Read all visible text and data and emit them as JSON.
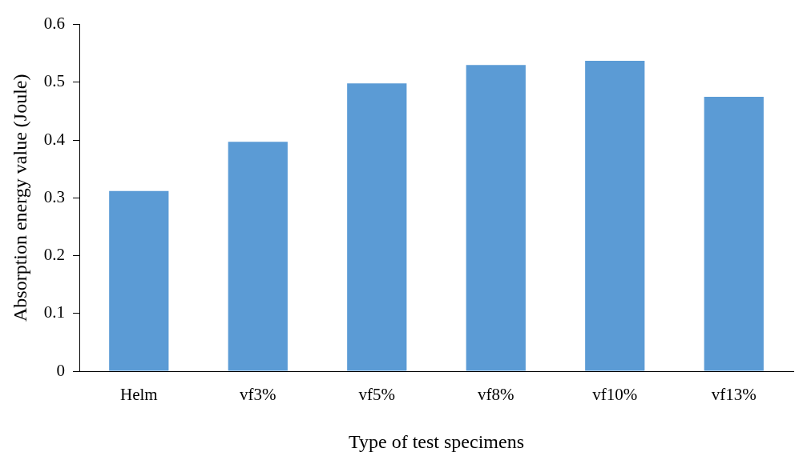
{
  "chart_data": {
    "type": "bar",
    "xlabel": "Type of test specimens",
    "ylabel": "Absorption energy value (Joule)",
    "categories": [
      "Helm",
      "vf3%",
      "vf5%",
      "vf8%",
      "vf10%",
      "vf13%"
    ],
    "values": [
      0.312,
      0.397,
      0.498,
      0.53,
      0.537,
      0.475
    ],
    "color": "#5b9bd5",
    "ylim": [
      0,
      0.6
    ],
    "yticks": [
      0,
      0.1,
      0.2,
      0.3,
      0.4,
      0.5,
      0.6
    ],
    "grid": false,
    "legend": false
  }
}
